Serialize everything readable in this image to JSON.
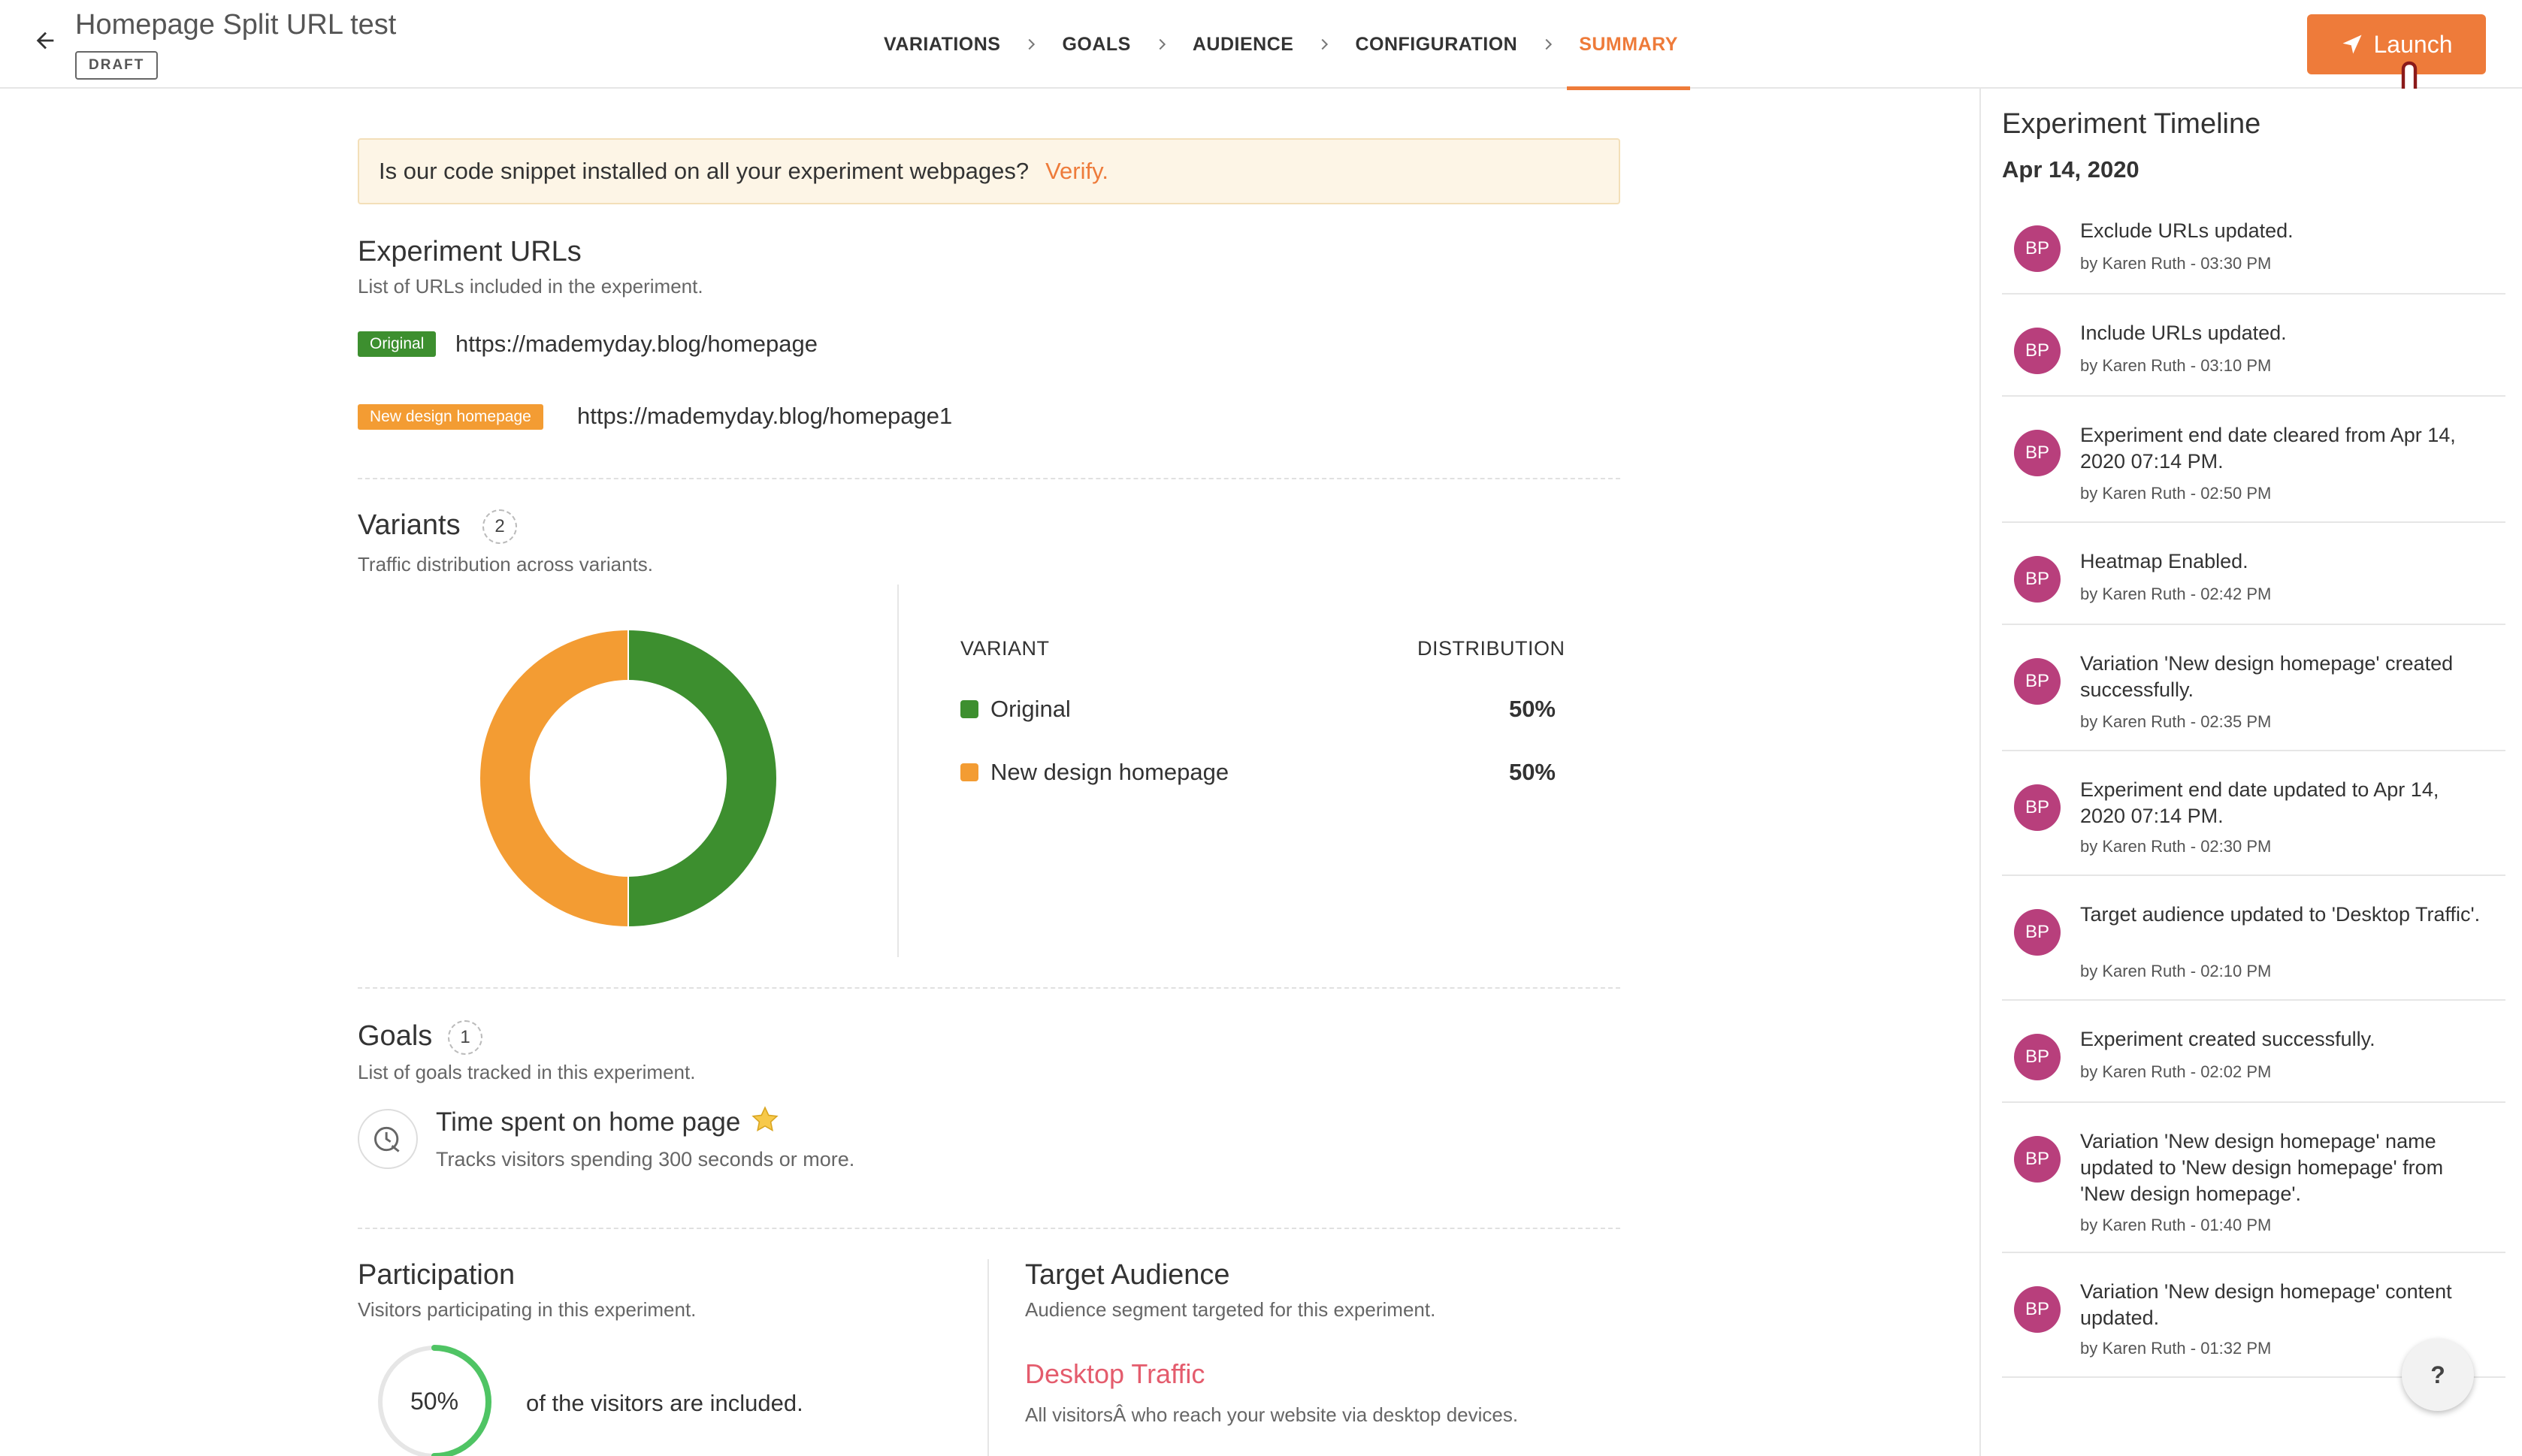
{
  "header": {
    "title": "Homepage Split URL test",
    "status": "DRAFT",
    "steps": [
      "VARIATIONS",
      "GOALS",
      "AUDIENCE",
      "CONFIGURATION",
      "SUMMARY"
    ],
    "active_step": "SUMMARY",
    "launch_label": "Launch"
  },
  "notice": {
    "text": "Is our code snippet installed on all your experiment webpages?",
    "link": "Verify."
  },
  "urls": {
    "title": "Experiment URLs",
    "subtitle": "List of URLs included in the experiment.",
    "items": [
      {
        "badge": "Original",
        "url": "https://mademyday.blog/homepage",
        "color": "#3d8f2f"
      },
      {
        "badge": "New design homepage",
        "url": "https://mademyday.blog/homepage1",
        "color": "#f39c33"
      }
    ]
  },
  "variants": {
    "title": "Variants",
    "count": "2",
    "subtitle": "Traffic distribution across variants.",
    "col_variant": "VARIANT",
    "col_distribution": "DISTRIBUTION"
  },
  "chart_data": {
    "type": "pie",
    "categories": [
      "Original",
      "New design homepage"
    ],
    "values": [
      50,
      50
    ],
    "labels": [
      "50%",
      "50%"
    ],
    "colors": [
      "#3d8f2f",
      "#f39c33"
    ],
    "donut": true
  },
  "goals": {
    "title": "Goals",
    "count": "1",
    "subtitle": "List of goals tracked in this experiment.",
    "name": "Time spent on home page",
    "desc": "Tracks visitors spending 300 seconds or more."
  },
  "participation": {
    "title": "Participation",
    "subtitle": "Visitors participating in this experiment.",
    "percent": "50%",
    "fraction": 0.5,
    "text": "of the visitors are included."
  },
  "audience": {
    "title": "Target Audience",
    "subtitle": "Audience segment targeted for this experiment.",
    "name": "Desktop Traffic",
    "desc": "All visitorsÂ who reach your website via desktop devices."
  },
  "timeline": {
    "title": "Experiment Timeline",
    "date": "Apr 14, 2020",
    "items": [
      {
        "avatar": "BP",
        "text": "Exclude URLs updated.",
        "by": "by Karen Ruth - 03:30 PM"
      },
      {
        "avatar": "BP",
        "text": "Include URLs updated.",
        "by": "by Karen Ruth - 03:10 PM"
      },
      {
        "avatar": "BP",
        "text": "Experiment end date cleared from Apr 14, 2020 07:14 PM.",
        "by": "by Karen Ruth - 02:50 PM"
      },
      {
        "avatar": "BP",
        "text": "Heatmap Enabled.",
        "by": "by Karen Ruth - 02:42 PM"
      },
      {
        "avatar": "BP",
        "text": "Variation 'New design homepage' created successfully.",
        "by": "by Karen Ruth - 02:35 PM"
      },
      {
        "avatar": "BP",
        "text": "Experiment end date updated to Apr 14, 2020 07:14 PM.",
        "by": "by Karen Ruth - 02:30 PM"
      },
      {
        "avatar": "BP",
        "text": "Target audience updated to 'Desktop Traffic'.",
        "by": "by Karen Ruth - 02:10 PM"
      },
      {
        "avatar": "BP",
        "text": "Experiment created successfully.",
        "by": "by Karen Ruth - 02:02 PM"
      },
      {
        "avatar": "BP",
        "text": "Variation 'New design homepage' name updated to 'New design homepage' from 'New design homepage'.",
        "by": "by Karen Ruth - 01:40 PM"
      },
      {
        "avatar": "BP",
        "text": "Variation 'New design homepage' content updated.",
        "by": "by Karen Ruth - 01:32 PM"
      }
    ]
  },
  "help_label": "?"
}
